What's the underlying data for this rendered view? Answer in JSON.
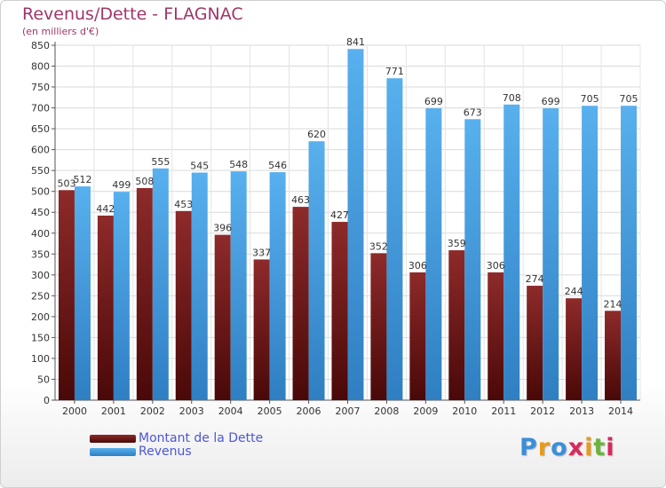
{
  "header": {
    "title": "Revenus/Dette - FLAGNAC",
    "subtitle": "(en milliers d'€)"
  },
  "legend": {
    "items": [
      {
        "label": "Montant de la Dette",
        "color": "#7a1a1a"
      },
      {
        "label": "Revenus",
        "color": "#4ea6e6"
      }
    ]
  },
  "logo": {
    "text": "Proxiti",
    "colors": [
      "#3a8fd8",
      "#e89a1c",
      "#3a8fd8",
      "#d62a5c",
      "#e89a1c",
      "#6ab43c",
      "#d62a5c"
    ]
  },
  "chart_data": {
    "type": "bar",
    "categories": [
      "2000",
      "2001",
      "2002",
      "2003",
      "2004",
      "2005",
      "2006",
      "2007",
      "2008",
      "2009",
      "2010",
      "2011",
      "2012",
      "2013",
      "2014"
    ],
    "series": [
      {
        "name": "Montant de la Dette",
        "color": "#7a1a1a",
        "values": [
          503,
          442,
          508,
          453,
          396,
          337,
          463,
          427,
          352,
          306,
          359,
          306,
          274,
          244,
          214
        ]
      },
      {
        "name": "Revenus",
        "color": "#4ea6e6",
        "values": [
          512,
          499,
          555,
          545,
          548,
          546,
          620,
          841,
          771,
          699,
          673,
          708,
          699,
          705,
          705
        ]
      }
    ],
    "ylim": [
      0,
      850
    ],
    "ytick_step": 50,
    "grid": true,
    "legend_position": "bottom-left"
  }
}
